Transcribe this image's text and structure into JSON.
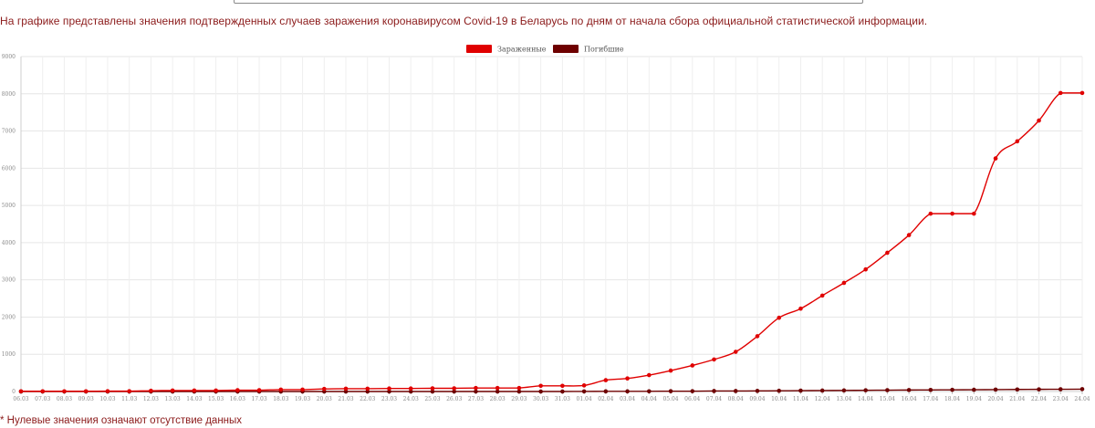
{
  "page": {
    "description": "На графике представлены значения подтвержденных случаев заражения коронавирусом Covid-19 в Беларусь по дням от начала сбора официальной статистической информации.",
    "footnote": "* Нулевые значения означают отсутствие данных"
  },
  "chart_data": {
    "type": "line",
    "title": "",
    "xlabel": "",
    "ylabel": "",
    "ylim": [
      0,
      9000
    ],
    "y_ticks": [
      0,
      1000,
      2000,
      3000,
      4000,
      5000,
      6000,
      7000,
      8000,
      9000
    ],
    "grid": true,
    "legend_position": "top-center",
    "categories": [
      "06.03",
      "07.03",
      "08.03",
      "09.03",
      "10.03",
      "11.03",
      "12.03",
      "13.03",
      "14.03",
      "15.03",
      "16.03",
      "17.03",
      "18.03",
      "19.03",
      "20.03",
      "21.03",
      "22.03",
      "23.03",
      "24.03",
      "25.03",
      "26.03",
      "27.03",
      "28.03",
      "29.03",
      "30.03",
      "31.03",
      "01.04",
      "02.04",
      "03.04",
      "04.04",
      "05.04",
      "06.04",
      "07.04",
      "08.04",
      "09.04",
      "10.04",
      "11.04",
      "12.04",
      "13.04",
      "14.04",
      "15.04",
      "16.04",
      "17.04",
      "18.04",
      "19.04",
      "20.04",
      "21.04",
      "22.04",
      "23.04",
      "24.04"
    ],
    "series": [
      {
        "name": "Зараженные",
        "color": "#e00000",
        "values": [
          6,
          6,
          6,
          6,
          9,
          9,
          21,
          27,
          27,
          27,
          36,
          36,
          51,
          51,
          69,
          76,
          76,
          81,
          81,
          86,
          86,
          94,
          94,
          94,
          152,
          152,
          163,
          304,
          351,
          440,
          562,
          700,
          861,
          1066,
          1486,
          1981,
          2226,
          2578,
          2919,
          3281,
          3728,
          4204,
          4779,
          4779,
          4779,
          6264,
          6723,
          7281,
          8022,
          8022
        ]
      },
      {
        "name": "Погибшие",
        "color": "#6e0000",
        "values": [
          0,
          0,
          0,
          0,
          0,
          0,
          0,
          0,
          0,
          0,
          0,
          0,
          0,
          0,
          0,
          0,
          0,
          0,
          0,
          0,
          0,
          0,
          0,
          0,
          0,
          0,
          2,
          4,
          4,
          5,
          8,
          8,
          13,
          13,
          16,
          19,
          23,
          26,
          29,
          33,
          36,
          40,
          42,
          45,
          47,
          51,
          55,
          58,
          60,
          63
        ]
      }
    ]
  }
}
